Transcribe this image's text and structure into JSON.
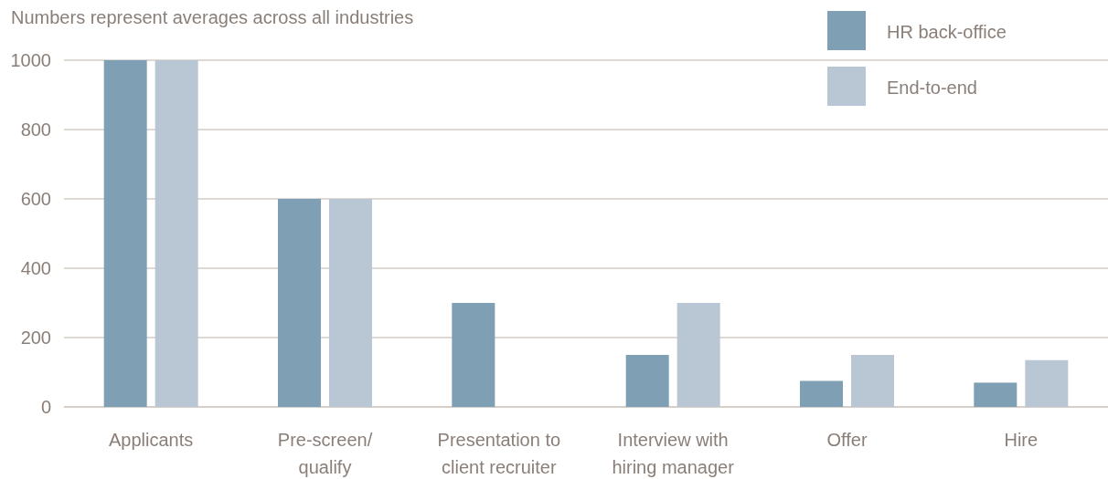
{
  "chart_data": {
    "type": "bar",
    "title": "Numbers represent averages across all industries",
    "categories": [
      "Applicants",
      "Pre-screen/\nqualify",
      "Presentation to\nclient recruiter",
      "Interview with\nhiring manager",
      "Offer",
      "Hire"
    ],
    "series": [
      {
        "name": "HR back-office",
        "color": "#7f9fb4",
        "values": [
          1000,
          600,
          300,
          150,
          75,
          70
        ]
      },
      {
        "name": "End-to-end",
        "color": "#b9c7d4",
        "values": [
          1000,
          600,
          null,
          300,
          150,
          135
        ]
      }
    ],
    "ylim": [
      0,
      1000
    ],
    "yticks": [
      0,
      200,
      400,
      600,
      800,
      1000
    ],
    "grid": "y",
    "legend": "top right"
  }
}
